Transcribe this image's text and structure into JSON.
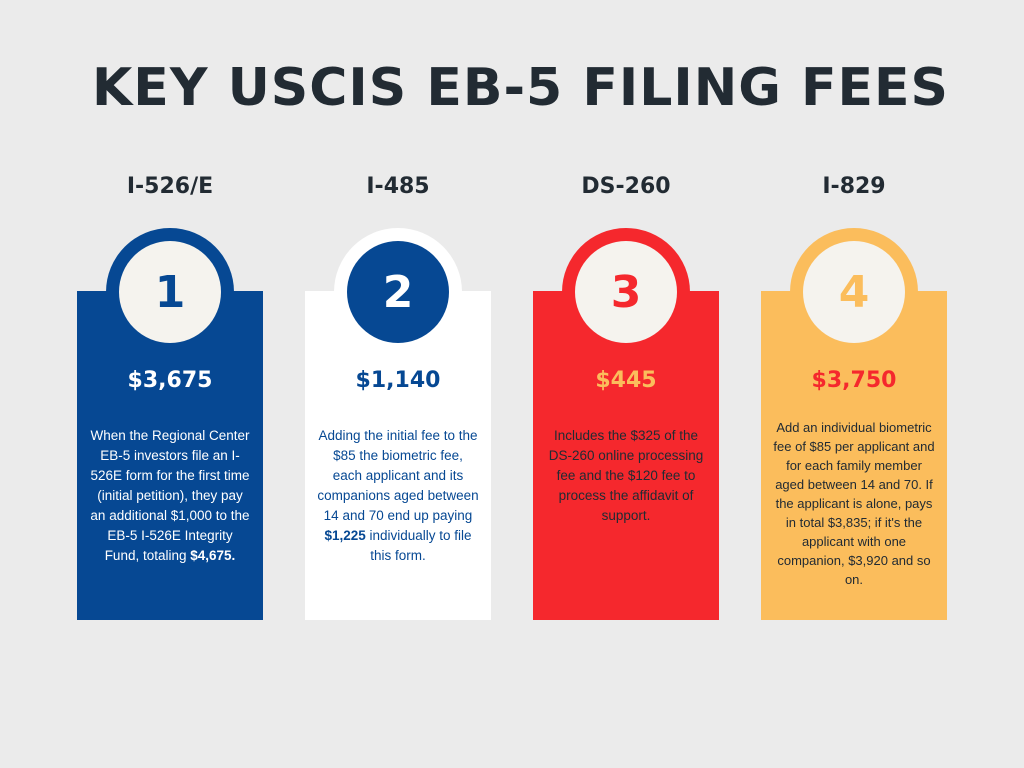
{
  "title": "KEY USCIS EB-5 FILING FEES",
  "colors": {
    "blue": "#064893",
    "white": "#ffffff",
    "red": "#f5282d",
    "yellow": "#fbbd5c",
    "dark": "#222b33",
    "cream": "#f5f3ee"
  },
  "cards": [
    {
      "form": "I-526/E",
      "number": "1",
      "price": "$3,675",
      "desc_a": "When the Regional Center EB-5 investors file an I-526E form for the first time (initial petition), they pay an additional $1,000 to the EB-5 I-526E Integrity Fund, totaling ",
      "desc_bold": "$4,675.",
      "desc_b": ""
    },
    {
      "form": "I-485",
      "number": "2",
      "price": "$1,140",
      "desc_a": "Adding the initial fee to the $85 the biometric fee, each applicant and its companions aged between 14 and 70 end up paying ",
      "desc_bold": "$1,225",
      "desc_b": " individually to file this form."
    },
    {
      "form": "DS-260",
      "number": "3",
      "price": "$445",
      "desc_a": "Includes the $325 of the DS-260 online processing fee and the $120 fee to process the affidavit of support.",
      "desc_bold": "",
      "desc_b": ""
    },
    {
      "form": "I-829",
      "number": "4",
      "price": "$3,750",
      "desc_a": "Add an individual biometric fee of $85  per applicant and for each family member aged between 14 and 70. If the applicant is alone, pays in total $3,835; if it's the applicant with one companion, $3,920 and so on.",
      "desc_bold": "",
      "desc_b": ""
    }
  ]
}
